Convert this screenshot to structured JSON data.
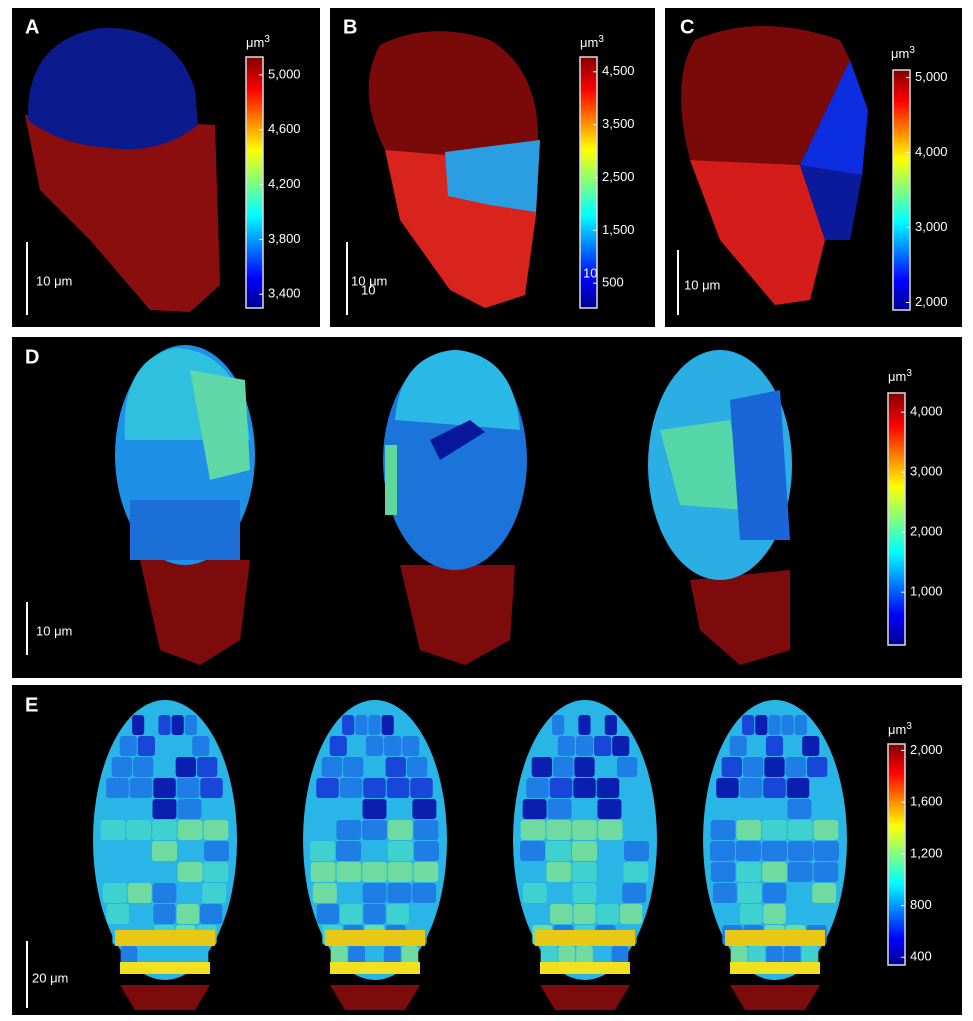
{
  "panels": [
    {
      "label": "A",
      "colorbar": {
        "unit": "μm",
        "unit_exponent": "3",
        "lim": [
          3300,
          5130
        ],
        "ticks": [
          {
            "value": 5000,
            "label": "5,000"
          },
          {
            "value": 4600,
            "label": "4,600"
          },
          {
            "value": 4200,
            "label": "4,200"
          },
          {
            "value": 3800,
            "label": "3,800"
          },
          {
            "value": 3400,
            "label": "3,400"
          }
        ]
      },
      "scale_bar": "10 μm"
    },
    {
      "label": "B",
      "colorbar": {
        "unit": "μm",
        "unit_exponent": "3",
        "lim": [
          30,
          4780
        ],
        "ticks": [
          {
            "value": 4500,
            "label": "4,500"
          },
          {
            "value": 3500,
            "label": "3,500"
          },
          {
            "value": 2500,
            "label": "2,500"
          },
          {
            "value": 1500,
            "label": "1,500"
          },
          500
        ]
      },
      "scale_bar": "10 μm",
      "overlap_texts": [
        "10",
        "10"
      ]
    },
    {
      "label": "C",
      "colorbar": {
        "unit": "μm",
        "unit_exponent": "3",
        "lim": [
          1900,
          5100
        ],
        "ticks": [
          {
            "value": 5000,
            "label": "5,000"
          },
          {
            "value": 4000,
            "label": "4,000"
          },
          {
            "value": 3000,
            "label": "3,000"
          },
          {
            "value": 2000,
            "label": "2,000"
          }
        ]
      },
      "scale_bar": "10 μm"
    },
    {
      "label": "D",
      "colorbar": {
        "unit": "μm",
        "unit_exponent": "3",
        "lim": [
          120,
          4320
        ],
        "ticks": [
          {
            "value": 4000,
            "label": "4,000"
          },
          {
            "value": 3000,
            "label": "3,000"
          },
          {
            "value": 2000,
            "label": "2,000"
          },
          {
            "value": 1000,
            "label": "1,000"
          }
        ]
      },
      "scale_bar": "10 μm"
    },
    {
      "label": "E",
      "colorbar": {
        "unit": "μm",
        "unit_exponent": "3",
        "lim": [
          340,
          2050
        ],
        "ticks": [
          {
            "value": 2000,
            "label": "2,000"
          },
          {
            "value": 1600,
            "label": "1,600"
          },
          {
            "value": 1200,
            "label": "1,200"
          },
          {
            "value": 800,
            "label": "800"
          },
          {
            "value": 400,
            "label": "400"
          }
        ]
      },
      "scale_bar": "20 μm"
    }
  ]
}
